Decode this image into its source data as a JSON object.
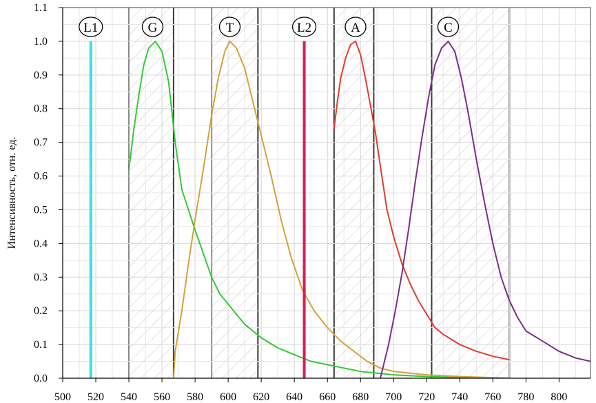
{
  "chart_data": {
    "type": "line",
    "title": "",
    "xlabel": "",
    "ylabel": "Интенсивность,  отн. ед.",
    "xlim": [
      500,
      819
    ],
    "ylim": [
      0.0,
      1.1
    ],
    "x_ticks": [
      "500",
      "520",
      "540",
      "560",
      "580",
      "600",
      "620",
      "640",
      "660",
      "680",
      "700",
      "720",
      "740",
      "760",
      "780",
      "800"
    ],
    "y_ticks": [
      "0.0",
      "0.1",
      "0.2",
      "0.3",
      "0.4",
      "0.5",
      "0.6",
      "0.7",
      "0.8",
      "0.9",
      "1.0",
      "1.1"
    ],
    "grid": true,
    "filter_windows": [
      [
        540,
        567
      ],
      [
        590,
        618
      ],
      [
        664,
        688
      ],
      [
        723,
        770
      ]
    ],
    "series": [
      {
        "name": "L1",
        "color": "#2fe3ea",
        "kind": "laser_line",
        "peak_x": 517
      },
      {
        "name": "G",
        "color": "#35c935",
        "kind": "curve",
        "points": [
          [
            540,
            0.62
          ],
          [
            543,
            0.74
          ],
          [
            546,
            0.84
          ],
          [
            549,
            0.93
          ],
          [
            552,
            0.98
          ],
          [
            556,
            1.0
          ],
          [
            560,
            0.97
          ],
          [
            564,
            0.88
          ],
          [
            568,
            0.7
          ],
          [
            572,
            0.56
          ],
          [
            576,
            0.5
          ],
          [
            580,
            0.44
          ],
          [
            585,
            0.37
          ],
          [
            590,
            0.3
          ],
          [
            595,
            0.25
          ],
          [
            600,
            0.22
          ],
          [
            610,
            0.16
          ],
          [
            620,
            0.12
          ],
          [
            630,
            0.09
          ],
          [
            640,
            0.07
          ],
          [
            650,
            0.05
          ],
          [
            660,
            0.04
          ],
          [
            670,
            0.03
          ],
          [
            680,
            0.02
          ],
          [
            700,
            0.01
          ],
          [
            720,
            0.005
          ],
          [
            740,
            0.002
          ],
          [
            770,
            0.0
          ]
        ]
      },
      {
        "name": "T",
        "color": "#d4a23a",
        "kind": "curve",
        "points": [
          [
            567,
            0.0
          ],
          [
            568,
            0.08
          ],
          [
            572,
            0.2
          ],
          [
            576,
            0.34
          ],
          [
            580,
            0.47
          ],
          [
            585,
            0.62
          ],
          [
            590,
            0.78
          ],
          [
            594,
            0.89
          ],
          [
            598,
            0.97
          ],
          [
            601,
            1.0
          ],
          [
            605,
            0.98
          ],
          [
            610,
            0.92
          ],
          [
            615,
            0.82
          ],
          [
            620,
            0.72
          ],
          [
            626,
            0.6
          ],
          [
            632,
            0.47
          ],
          [
            638,
            0.36
          ],
          [
            645,
            0.26
          ],
          [
            652,
            0.2
          ],
          [
            660,
            0.15
          ],
          [
            668,
            0.11
          ],
          [
            676,
            0.08
          ],
          [
            684,
            0.05
          ],
          [
            692,
            0.03
          ],
          [
            700,
            0.02
          ],
          [
            720,
            0.01
          ],
          [
            740,
            0.005
          ],
          [
            770,
            0.0
          ]
        ]
      },
      {
        "name": "L2",
        "color": "#d81b5c",
        "kind": "laser_line",
        "peak_x": 646
      },
      {
        "name": "A",
        "color": "#e23c2c",
        "kind": "curve",
        "points": [
          [
            664,
            0.74
          ],
          [
            666,
            0.82
          ],
          [
            668,
            0.89
          ],
          [
            671,
            0.95
          ],
          [
            674,
            0.99
          ],
          [
            677,
            1.0
          ],
          [
            680,
            0.96
          ],
          [
            683,
            0.89
          ],
          [
            686,
            0.81
          ],
          [
            689,
            0.73
          ],
          [
            692,
            0.63
          ],
          [
            696,
            0.5
          ],
          [
            700,
            0.42
          ],
          [
            705,
            0.34
          ],
          [
            710,
            0.28
          ],
          [
            715,
            0.23
          ],
          [
            720,
            0.19
          ],
          [
            725,
            0.15
          ],
          [
            730,
            0.13
          ],
          [
            740,
            0.1
          ],
          [
            750,
            0.08
          ],
          [
            760,
            0.065
          ],
          [
            770,
            0.055
          ]
        ]
      },
      {
        "name": "C",
        "color": "#7b2c8c",
        "kind": "curve",
        "points": [
          [
            692,
            0.0
          ],
          [
            693,
            0.02
          ],
          [
            697,
            0.1
          ],
          [
            701,
            0.2
          ],
          [
            705,
            0.31
          ],
          [
            709,
            0.44
          ],
          [
            713,
            0.58
          ],
          [
            717,
            0.71
          ],
          [
            721,
            0.83
          ],
          [
            725,
            0.93
          ],
          [
            729,
            0.98
          ],
          [
            733,
            1.0
          ],
          [
            737,
            0.97
          ],
          [
            741,
            0.89
          ],
          [
            745,
            0.79
          ],
          [
            750,
            0.65
          ],
          [
            755,
            0.52
          ],
          [
            760,
            0.4
          ],
          [
            765,
            0.3
          ],
          [
            770,
            0.23
          ],
          [
            775,
            0.18
          ],
          [
            780,
            0.14
          ],
          [
            790,
            0.11
          ],
          [
            800,
            0.08
          ],
          [
            810,
            0.06
          ],
          [
            819,
            0.05
          ]
        ]
      }
    ]
  }
}
